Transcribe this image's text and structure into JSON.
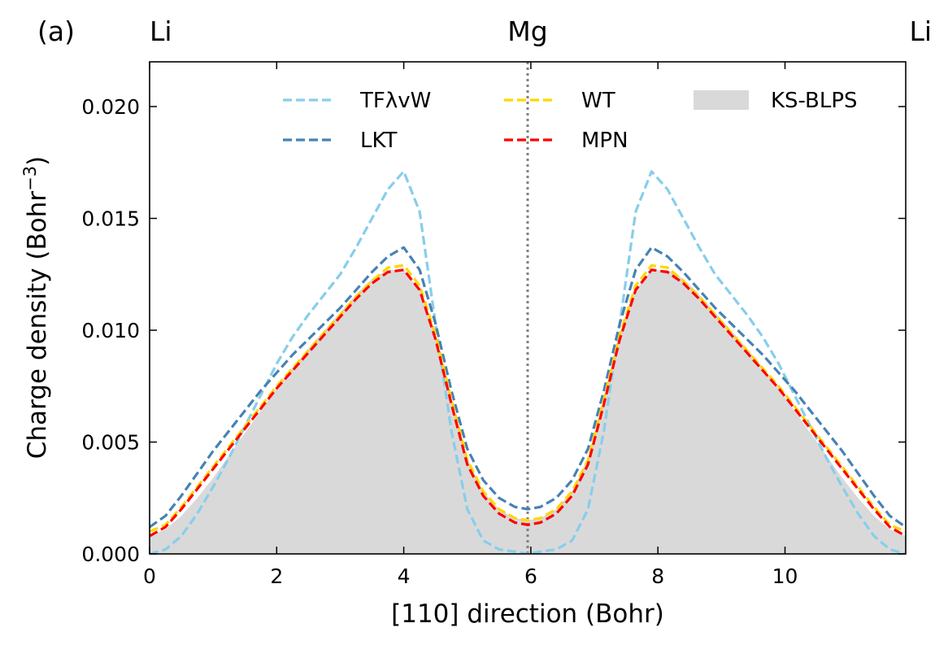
{
  "panel_label": "(a)",
  "chart_data": {
    "type": "line",
    "title": "",
    "xlabel": "[110] direction (Bohr)",
    "ylabel_main": "Charge density (Bohr",
    "ylabel_sup": "−3",
    "ylabel_close": ")",
    "xlim": [
      0,
      11.9
    ],
    "ylim": [
      0,
      0.022
    ],
    "xticks": [
      0,
      2,
      4,
      6,
      8,
      10
    ],
    "xtick_labels": [
      "0",
      "2",
      "4",
      "6",
      "8",
      "10"
    ],
    "yticks": [
      0,
      0.005,
      0.01,
      0.015,
      0.02
    ],
    "ytick_labels": [
      "0.000",
      "0.005",
      "0.010",
      "0.015",
      "0.020"
    ],
    "grid": false,
    "legend_position": "top",
    "vline": {
      "x": 5.95,
      "style": "dotted",
      "color": "#808080"
    },
    "top_labels": [
      {
        "x": 0,
        "text": "Li"
      },
      {
        "x": 5.95,
        "text": "Mg"
      },
      {
        "x": 11.9,
        "text": "Li"
      }
    ],
    "x": [
      0,
      0.25,
      0.5,
      0.75,
      1,
      1.25,
      1.5,
      1.75,
      2,
      2.25,
      2.5,
      2.75,
      3,
      3.25,
      3.5,
      3.75,
      4,
      4.25,
      4.5,
      4.75,
      5,
      5.25,
      5.5,
      5.75,
      5.95,
      6.15,
      6.4,
      6.65,
      6.9,
      7.15,
      7.4,
      7.65,
      7.9,
      8.15,
      8.4,
      8.65,
      8.9,
      9.15,
      9.4,
      9.65,
      9.9,
      10.15,
      10.4,
      10.65,
      10.9,
      11.15,
      11.4,
      11.65,
      11.9
    ],
    "series": [
      {
        "name": "TFλvW",
        "color": "#87CEEB",
        "style": "dashed",
        "values": [
          0.0,
          0.0002,
          0.0008,
          0.0018,
          0.003,
          0.0043,
          0.0057,
          0.0071,
          0.0085,
          0.0097,
          0.0107,
          0.0116,
          0.0125,
          0.0137,
          0.015,
          0.0163,
          0.0171,
          0.0153,
          0.0103,
          0.0055,
          0.002,
          0.0006,
          0.0002,
          0.0001,
          0.0,
          0.0001,
          0.0002,
          0.0006,
          0.002,
          0.0055,
          0.0103,
          0.0153,
          0.0171,
          0.0163,
          0.015,
          0.0137,
          0.0125,
          0.0116,
          0.0107,
          0.0097,
          0.0085,
          0.0071,
          0.0057,
          0.0043,
          0.003,
          0.0018,
          0.0008,
          0.0002,
          0.0
        ]
      },
      {
        "name": "LKT",
        "color": "#4682B4",
        "style": "dashed",
        "values": [
          0.0012,
          0.0017,
          0.0026,
          0.0036,
          0.0046,
          0.0055,
          0.0064,
          0.0073,
          0.0081,
          0.0089,
          0.0096,
          0.0103,
          0.011,
          0.0118,
          0.0126,
          0.0133,
          0.0137,
          0.0127,
          0.0103,
          0.0073,
          0.0047,
          0.0033,
          0.0025,
          0.0021,
          0.002,
          0.0021,
          0.0025,
          0.0033,
          0.0047,
          0.0073,
          0.0103,
          0.0127,
          0.0137,
          0.0133,
          0.0126,
          0.0118,
          0.011,
          0.0103,
          0.0096,
          0.0089,
          0.0081,
          0.0073,
          0.0064,
          0.0055,
          0.0046,
          0.0036,
          0.0026,
          0.0017,
          0.0012
        ]
      },
      {
        "name": "WT",
        "color": "#FFD700",
        "style": "dashed",
        "values": [
          0.001,
          0.0013,
          0.0021,
          0.003,
          0.0039,
          0.0048,
          0.0057,
          0.0066,
          0.0075,
          0.0083,
          0.0091,
          0.0099,
          0.0107,
          0.0115,
          0.0122,
          0.0128,
          0.0129,
          0.012,
          0.0098,
          0.0069,
          0.0042,
          0.0028,
          0.002,
          0.0016,
          0.0015,
          0.0016,
          0.002,
          0.0028,
          0.0042,
          0.0069,
          0.0098,
          0.012,
          0.0129,
          0.0128,
          0.0122,
          0.0115,
          0.0107,
          0.0099,
          0.0091,
          0.0083,
          0.0075,
          0.0066,
          0.0057,
          0.0048,
          0.0039,
          0.003,
          0.0021,
          0.0013,
          0.001
        ]
      },
      {
        "name": "MPN",
        "color": "#FF0000",
        "style": "dashed",
        "values": [
          0.0008,
          0.0012,
          0.002,
          0.0029,
          0.0038,
          0.0047,
          0.0056,
          0.0065,
          0.0074,
          0.0082,
          0.009,
          0.0098,
          0.0106,
          0.0114,
          0.0121,
          0.0126,
          0.0127,
          0.0118,
          0.0096,
          0.0067,
          0.004,
          0.0026,
          0.0018,
          0.0014,
          0.0013,
          0.0014,
          0.0018,
          0.0026,
          0.004,
          0.0067,
          0.0096,
          0.0118,
          0.0127,
          0.0126,
          0.0121,
          0.0114,
          0.0106,
          0.0098,
          0.009,
          0.0082,
          0.0074,
          0.0065,
          0.0056,
          0.0047,
          0.0038,
          0.0029,
          0.002,
          0.0012,
          0.0008
        ]
      },
      {
        "name": "KS-BLPS",
        "color": "#D9D9D9",
        "style": "filled",
        "values": [
          0.0008,
          0.0011,
          0.0017,
          0.0025,
          0.0034,
          0.0044,
          0.0054,
          0.0064,
          0.0074,
          0.0083,
          0.0092,
          0.01,
          0.0108,
          0.0116,
          0.0123,
          0.0127,
          0.0127,
          0.0118,
          0.0097,
          0.0069,
          0.0043,
          0.0028,
          0.002,
          0.0016,
          0.0015,
          0.0016,
          0.002,
          0.0028,
          0.0043,
          0.0069,
          0.0097,
          0.0118,
          0.0127,
          0.0127,
          0.0123,
          0.0116,
          0.0108,
          0.01,
          0.0092,
          0.0083,
          0.0074,
          0.0064,
          0.0054,
          0.0044,
          0.0034,
          0.0025,
          0.0017,
          0.0011,
          0.0008
        ]
      }
    ]
  }
}
